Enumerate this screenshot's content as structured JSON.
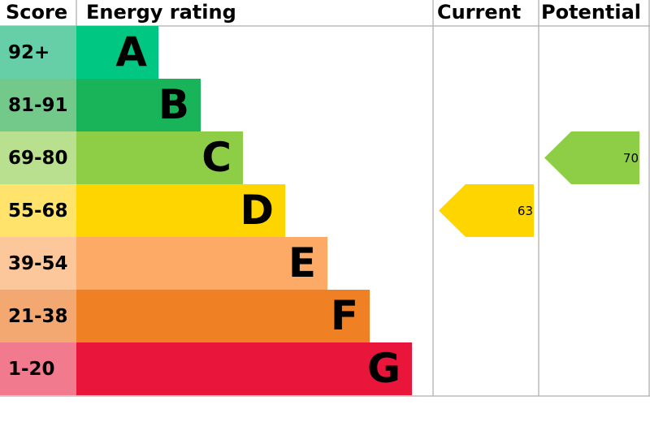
{
  "header": {
    "score": "Score",
    "rating": "Energy rating",
    "current": "Current",
    "potential": "Potential"
  },
  "bands": [
    {
      "score": "92+",
      "letter": "A",
      "color": "#00c781",
      "light": "#66cfa7"
    },
    {
      "score": "81-91",
      "letter": "B",
      "color": "#19b459",
      "light": "#72c98a"
    },
    {
      "score": "69-80",
      "letter": "C",
      "color": "#8dce46",
      "light": "#b9e08f"
    },
    {
      "score": "55-68",
      "letter": "D",
      "color": "#ffd500",
      "light": "#ffe36b"
    },
    {
      "score": "39-54",
      "letter": "E",
      "color": "#fcaa65",
      "light": "#fdc79c"
    },
    {
      "score": "21-38",
      "letter": "F",
      "color": "#ef8023",
      "light": "#f4a871"
    },
    {
      "score": "1-20",
      "letter": "G",
      "color": "#e9153b",
      "light": "#f17a8e"
    }
  ],
  "current": 63,
  "potential": 70
}
